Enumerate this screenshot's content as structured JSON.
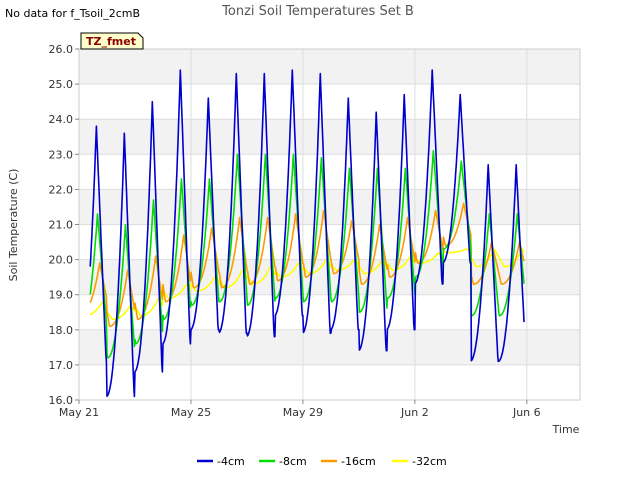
{
  "note": "No data for f_Tsoil_2cmB",
  "chart_data": {
    "type": "line",
    "title": "Tonzi Soil Temperatures Set B",
    "tag": "TZ_fmet",
    "xlabel": "Time",
    "ylabel": "Soil Temperature (C)",
    "ylim": [
      16.0,
      26.0
    ],
    "y_ticks": [
      "16.0",
      "17.0",
      "18.0",
      "19.0",
      "20.0",
      "21.0",
      "22.0",
      "23.0",
      "24.0",
      "25.0",
      "26.0"
    ],
    "x_range_days": [
      0,
      11.4
    ],
    "x_ticks": [
      {
        "day": 0,
        "label": "May 21"
      },
      {
        "day": 4,
        "label": "May 25"
      },
      {
        "day": 8,
        "label": "May 29"
      },
      {
        "day": 12,
        "label": "Jun 2"
      },
      {
        "day": 16,
        "label": "Jun 6"
      }
    ],
    "grid": true,
    "legend_position": "bottom",
    "series": [
      {
        "name": "-4cm",
        "color": "#0000cc",
        "day_min": [
          17.1,
          16.1,
          16.8,
          17.6,
          18.0,
          17.9,
          17.8,
          18.4,
          17.9,
          18.0,
          17.4,
          18.0,
          19.3,
          19.9,
          17.1
        ],
        "day_max": [
          23.8,
          23.6,
          24.5,
          25.4,
          24.6,
          25.3,
          25.3,
          25.4,
          25.3,
          24.6,
          24.2,
          24.7,
          25.4,
          24.7,
          22.7
        ]
      },
      {
        "name": "-8cm",
        "color": "#00dd00",
        "day_min": [
          17.9,
          17.2,
          17.6,
          18.3,
          18.7,
          18.8,
          18.7,
          18.9,
          18.8,
          18.8,
          18.5,
          18.9,
          19.5,
          20.3,
          18.4
        ],
        "day_max": [
          21.3,
          21.0,
          21.7,
          22.3,
          22.3,
          23.0,
          23.0,
          23.0,
          22.9,
          22.6,
          22.6,
          22.6,
          23.1,
          22.8,
          21.3
        ]
      },
      {
        "name": "-16cm",
        "color": "#ff9900",
        "day_min": [
          18.5,
          18.1,
          18.3,
          18.8,
          19.2,
          19.2,
          19.3,
          19.4,
          19.5,
          19.6,
          19.3,
          19.5,
          19.9,
          20.4,
          19.3
        ],
        "day_max": [
          19.9,
          19.7,
          20.1,
          20.7,
          20.9,
          21.2,
          21.2,
          21.3,
          21.4,
          21.1,
          21.0,
          21.2,
          21.4,
          21.6,
          20.5
        ]
      },
      {
        "name": "-32cm",
        "color": "#ffff00",
        "day_min": [
          18.4,
          18.3,
          18.4,
          18.9,
          19.1,
          19.2,
          19.3,
          19.5,
          19.6,
          19.7,
          19.6,
          19.7,
          19.9,
          20.2,
          19.8
        ],
        "day_max": [
          18.8,
          18.7,
          18.9,
          19.3,
          19.5,
          19.7,
          19.8,
          19.9,
          20.0,
          20.0,
          20.0,
          20.1,
          20.2,
          20.3,
          20.3
        ]
      }
    ]
  }
}
